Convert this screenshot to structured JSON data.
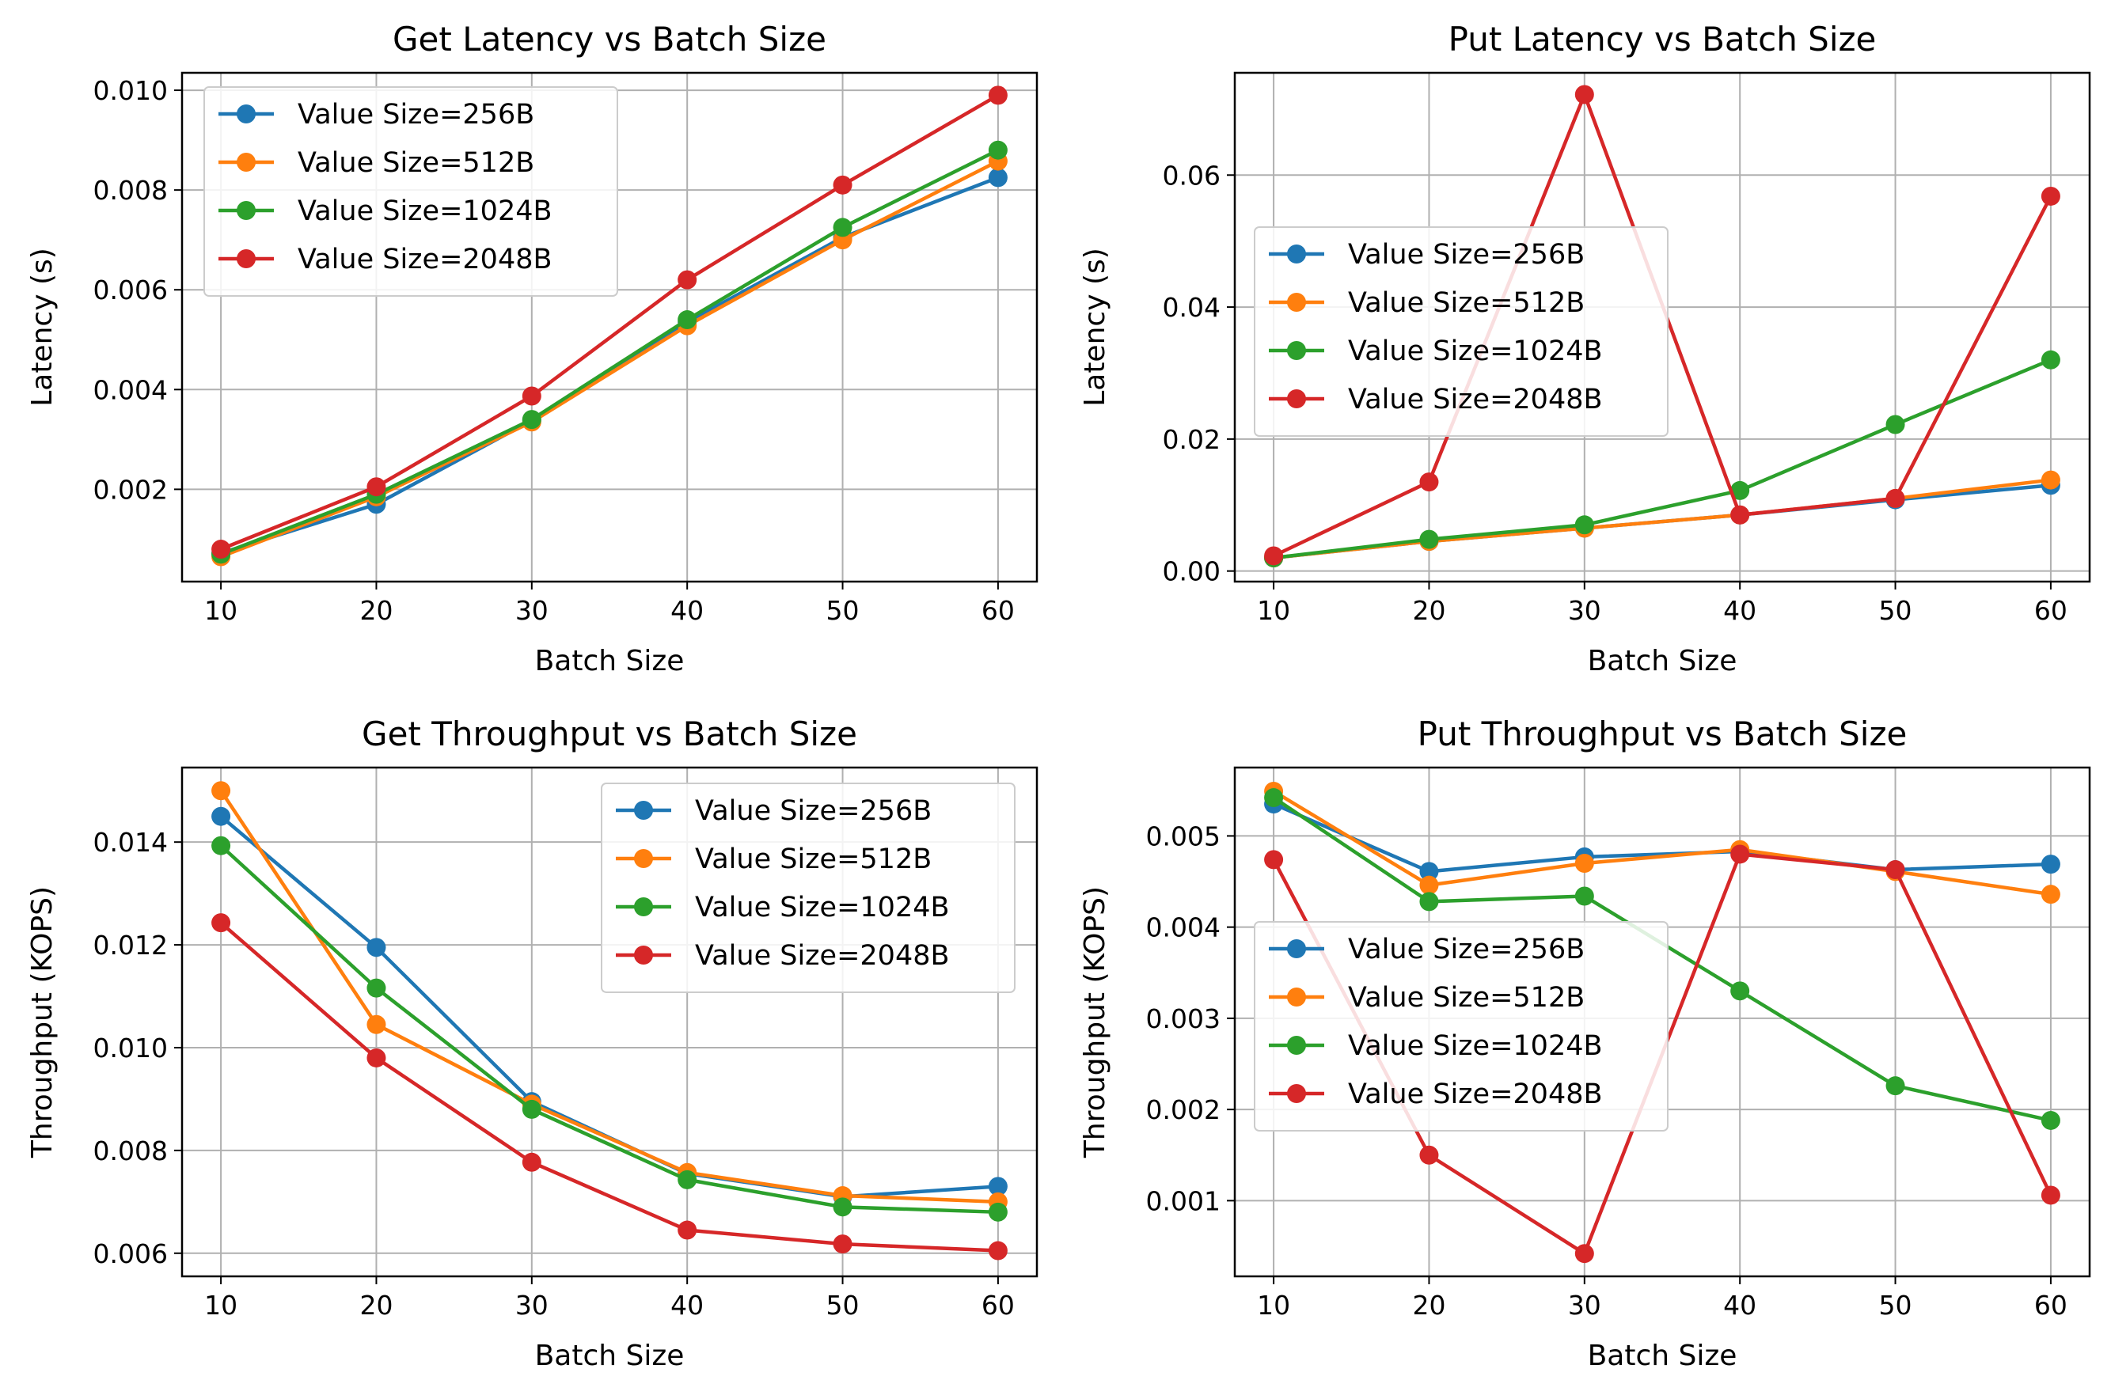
{
  "figure": {
    "colors": {
      "Value Size=256B": "#1f77b4",
      "Value Size=512B": "#ff7f0e",
      "Value Size=1024B": "#2ca02c",
      "Value Size=2048B": "#d62728"
    }
  },
  "chart_data": [
    {
      "type": "line",
      "title": "Get Latency vs Batch Size",
      "xlabel": "Batch Size",
      "ylabel": "Latency (s)",
      "x": [
        10,
        20,
        30,
        40,
        50,
        60
      ],
      "xticks": [
        "10",
        "20",
        "30",
        "40",
        "50",
        "60"
      ],
      "yticks": [
        "0.002",
        "0.004",
        "0.006",
        "0.008",
        "0.010"
      ],
      "xlim": [
        7.5,
        62.5
      ],
      "ylim": [
        0.00015,
        0.01035
      ],
      "grid": true,
      "legend": "upper left",
      "series": [
        {
          "name": "Value Size=256B",
          "values": [
            0.00072,
            0.0017,
            0.00338,
            0.00535,
            0.00705,
            0.00825
          ]
        },
        {
          "name": "Value Size=512B",
          "values": [
            0.00065,
            0.00185,
            0.00335,
            0.00528,
            0.007,
            0.00858
          ]
        },
        {
          "name": "Value Size=1024B",
          "values": [
            0.0007,
            0.0019,
            0.0034,
            0.0054,
            0.00725,
            0.0088
          ]
        },
        {
          "name": "Value Size=2048B",
          "values": [
            0.0008,
            0.00205,
            0.00387,
            0.0062,
            0.0081,
            0.0099
          ]
        }
      ]
    },
    {
      "type": "line",
      "title": "Put Latency vs Batch Size",
      "xlabel": "Batch Size",
      "ylabel": "Latency (s)",
      "x": [
        10,
        20,
        30,
        40,
        50,
        60
      ],
      "xticks": [
        "10",
        "20",
        "30",
        "40",
        "50",
        "60"
      ],
      "yticks": [
        "0.00",
        "0.02",
        "0.04",
        "0.06"
      ],
      "xlim": [
        7.5,
        62.5
      ],
      "ylim": [
        -0.0016,
        0.0755
      ],
      "grid": true,
      "legend": "center left",
      "series": [
        {
          "name": "Value Size=256B",
          "values": [
            0.002,
            0.0045,
            0.0065,
            0.0085,
            0.0108,
            0.013
          ]
        },
        {
          "name": "Value Size=512B",
          "values": [
            0.002,
            0.0045,
            0.0065,
            0.0085,
            0.011,
            0.0138
          ]
        },
        {
          "name": "Value Size=1024B",
          "values": [
            0.002,
            0.0048,
            0.007,
            0.0122,
            0.0222,
            0.032
          ]
        },
        {
          "name": "Value Size=2048B",
          "values": [
            0.0023,
            0.0135,
            0.0722,
            0.0085,
            0.011,
            0.0568
          ]
        }
      ]
    },
    {
      "type": "line",
      "title": "Get Throughput vs Batch Size",
      "xlabel": "Batch Size",
      "ylabel": "Throughput (KOPS)",
      "x": [
        10,
        20,
        30,
        40,
        50,
        60
      ],
      "xticks": [
        "10",
        "20",
        "30",
        "40",
        "50",
        "60"
      ],
      "yticks": [
        "0.006",
        "0.008",
        "0.010",
        "0.012",
        "0.014"
      ],
      "xlim": [
        7.5,
        62.5
      ],
      "ylim": [
        0.00555,
        0.01545
      ],
      "grid": true,
      "legend": "upper right",
      "series": [
        {
          "name": "Value Size=256B",
          "values": [
            0.0145,
            0.01195,
            0.00895,
            0.00755,
            0.0071,
            0.0073
          ]
        },
        {
          "name": "Value Size=512B",
          "values": [
            0.015,
            0.01045,
            0.0089,
            0.00757,
            0.00712,
            0.007
          ]
        },
        {
          "name": "Value Size=1024B",
          "values": [
            0.01393,
            0.01116,
            0.0088,
            0.00743,
            0.0069,
            0.0068
          ]
        },
        {
          "name": "Value Size=2048B",
          "values": [
            0.01243,
            0.0098,
            0.00777,
            0.00645,
            0.00618,
            0.00605
          ]
        }
      ]
    },
    {
      "type": "line",
      "title": "Put Throughput vs Batch Size",
      "xlabel": "Batch Size",
      "ylabel": "Throughput (KOPS)",
      "x": [
        10,
        20,
        30,
        40,
        50,
        60
      ],
      "xticks": [
        "10",
        "20",
        "30",
        "40",
        "50",
        "60"
      ],
      "yticks": [
        "0.001",
        "0.002",
        "0.003",
        "0.004",
        "0.005"
      ],
      "xlim": [
        7.5,
        62.5
      ],
      "ylim": [
        0.00017,
        0.00575
      ],
      "grid": true,
      "legend": "center left",
      "series": [
        {
          "name": "Value Size=256B",
          "values": [
            0.00535,
            0.00461,
            0.00477,
            0.00483,
            0.00463,
            0.00469
          ]
        },
        {
          "name": "Value Size=512B",
          "values": [
            0.00549,
            0.00446,
            0.0047,
            0.00485,
            0.00461,
            0.00436
          ]
        },
        {
          "name": "Value Size=1024B",
          "values": [
            0.00542,
            0.00428,
            0.00434,
            0.0033,
            0.00226,
            0.00188
          ]
        },
        {
          "name": "Value Size=2048B",
          "values": [
            0.00474,
            0.0015,
            0.00042,
            0.0048,
            0.00463,
            0.00106
          ]
        }
      ]
    }
  ]
}
